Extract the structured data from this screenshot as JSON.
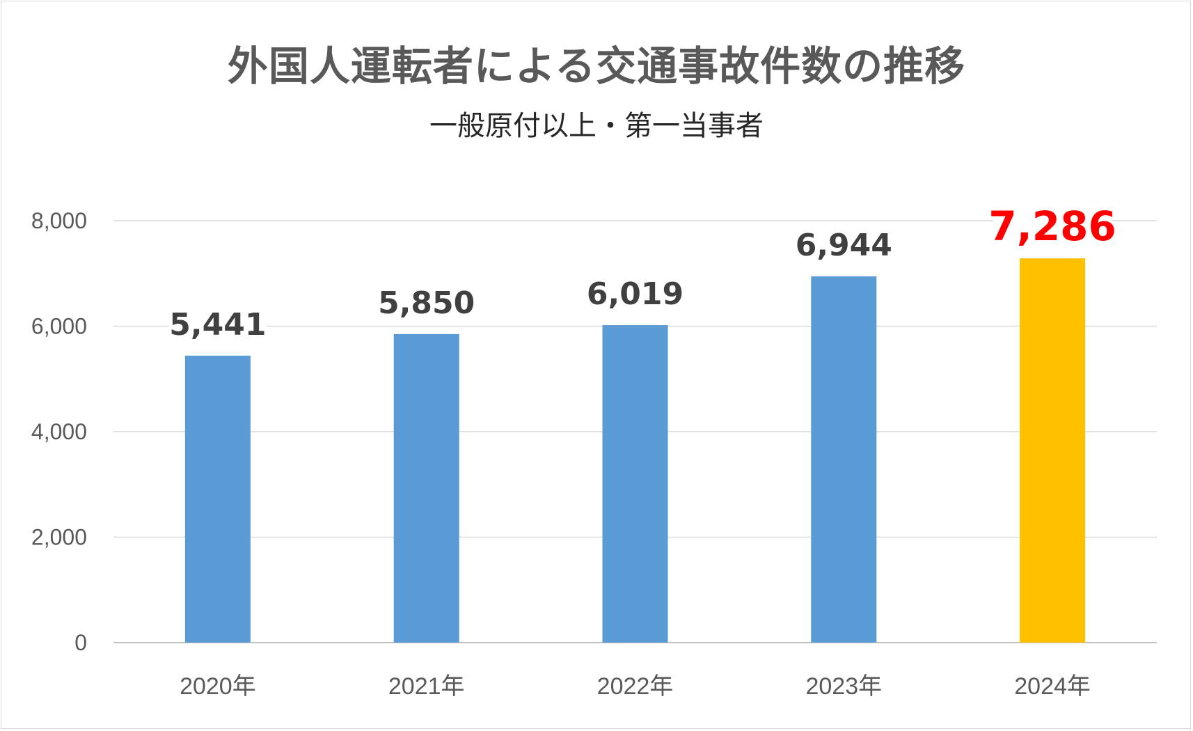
{
  "chart_data": {
    "type": "bar",
    "title": "外国人運転者による交通事故件数の推移",
    "subtitle": "一般原付以上・第一当事者",
    "categories": [
      "2020年",
      "2021年",
      "2022年",
      "2023年",
      "2024年"
    ],
    "values": [
      5441,
      5850,
      6019,
      6944,
      7286
    ],
    "data_labels": [
      "5,441",
      "5,850",
      "6,019",
      "6,944",
      "7,286"
    ],
    "ylim": [
      0,
      8000
    ],
    "yticks": [
      0,
      2000,
      4000,
      6000,
      8000
    ],
    "ytick_labels": [
      "0",
      "2,000",
      "4,000",
      "6,000",
      "8,000"
    ],
    "xlabel": "",
    "ylabel": "",
    "grid": true,
    "legend": "none",
    "colors": {
      "bar": "#5b9bd5",
      "highlight_bar": "#ffc000",
      "highlight_label": "#ff0000",
      "grid": "#d9d9d9"
    },
    "highlight_index": 4
  }
}
